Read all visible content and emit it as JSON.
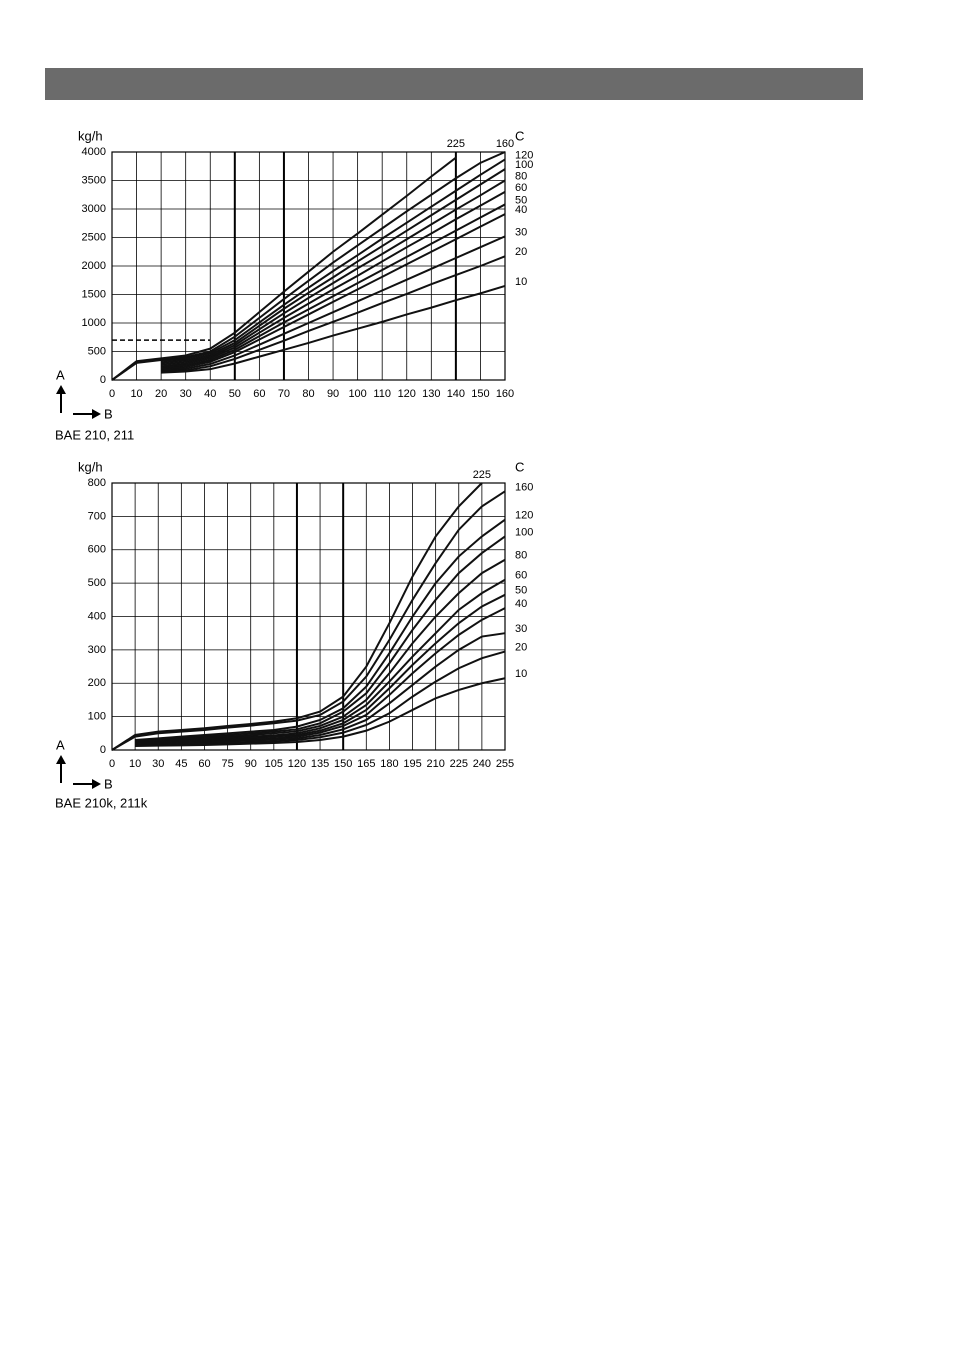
{
  "chart_data": [
    {
      "type": "line",
      "y_unit": "kg/h",
      "y_label": "A",
      "x_label": "B",
      "legend_title": "C",
      "caption": "BAE 210, 211",
      "color": "#111",
      "grid": true,
      "bold_gridlines_x": [
        50,
        70,
        140
      ],
      "reference": {
        "y": 700,
        "x_to": 40
      },
      "xlim": [
        0,
        160
      ],
      "ylim": [
        0,
        4000
      ],
      "xticks": [
        0,
        10,
        20,
        30,
        40,
        50,
        60,
        70,
        80,
        90,
        100,
        110,
        120,
        130,
        140,
        150,
        160
      ],
      "yticks": [
        0,
        500,
        1000,
        1500,
        2000,
        2500,
        3000,
        3500,
        4000
      ],
      "x": [
        0,
        10,
        20,
        30,
        40,
        50,
        60,
        70,
        80,
        90,
        100,
        110,
        120,
        130,
        140,
        150,
        160
      ],
      "series": [
        {
          "name": "225",
          "values": [
            0,
            330,
            380,
            430,
            550,
            830,
            1190,
            1550,
            1900,
            2250,
            2570,
            2900,
            3230,
            3570,
            3900,
            null,
            null
          ]
        },
        {
          "name": "160",
          "values": [
            0,
            300,
            350,
            400,
            500,
            760,
            1090,
            1420,
            1740,
            2060,
            2360,
            2660,
            2960,
            3250,
            3540,
            3810,
            4000
          ]
        },
        {
          "name": "120",
          "values": [
            null,
            null,
            330,
            380,
            470,
            700,
            1010,
            1320,
            1620,
            1910,
            2190,
            2480,
            2760,
            3040,
            3320,
            3600,
            3870
          ]
        },
        {
          "name": "100",
          "values": [
            null,
            null,
            300,
            350,
            440,
            650,
            950,
            1250,
            1530,
            1800,
            2080,
            2350,
            2620,
            2890,
            3160,
            3430,
            3700
          ]
        },
        {
          "name": "80",
          "values": [
            null,
            null,
            270,
            320,
            410,
            610,
            890,
            1170,
            1440,
            1700,
            1960,
            2210,
            2470,
            2730,
            2990,
            3240,
            3500
          ]
        },
        {
          "name": "60",
          "values": [
            null,
            null,
            240,
            290,
            380,
            570,
            830,
            1090,
            1340,
            1590,
            1830,
            2080,
            2330,
            2570,
            2820,
            3060,
            3300
          ]
        },
        {
          "name": "50",
          "values": [
            null,
            null,
            210,
            260,
            350,
            530,
            770,
            1010,
            1240,
            1470,
            1700,
            1930,
            2160,
            2390,
            2620,
            2850,
            3080
          ]
        },
        {
          "name": "40",
          "values": [
            null,
            null,
            190,
            230,
            320,
            490,
            710,
            930,
            1150,
            1370,
            1590,
            1810,
            2030,
            2250,
            2470,
            2690,
            2910
          ]
        },
        {
          "name": "30",
          "values": [
            null,
            null,
            170,
            200,
            280,
            430,
            620,
            810,
            1000,
            1190,
            1380,
            1570,
            1760,
            1950,
            2140,
            2330,
            2520
          ]
        },
        {
          "name": "20",
          "values": [
            null,
            null,
            150,
            170,
            240,
            370,
            530,
            690,
            860,
            1020,
            1180,
            1350,
            1510,
            1680,
            1840,
            2000,
            2170
          ]
        },
        {
          "name": "10",
          "values": [
            null,
            null,
            130,
            150,
            190,
            290,
            410,
            530,
            650,
            780,
            900,
            1020,
            1150,
            1270,
            1400,
            1520,
            1650
          ]
        }
      ]
    },
    {
      "type": "line",
      "y_unit": "kg/h",
      "y_label": "A",
      "x_label": "B",
      "legend_title": "C",
      "caption": "BAE 210k, 211k",
      "color": "#111",
      "grid": true,
      "bold_gridlines_x": [
        120,
        150
      ],
      "xlim": [
        0,
        255
      ],
      "ylim": [
        0,
        800
      ],
      "xticks": [
        0,
        10,
        30,
        45,
        60,
        75,
        90,
        105,
        120,
        135,
        150,
        165,
        180,
        195,
        210,
        225,
        240,
        255
      ],
      "yticks": [
        0,
        100,
        200,
        300,
        400,
        500,
        600,
        700,
        800
      ],
      "x": [
        0,
        10,
        30,
        45,
        60,
        75,
        90,
        105,
        120,
        135,
        150,
        165,
        180,
        195,
        210,
        225,
        240,
        255
      ],
      "series": [
        {
          "name": "225",
          "values": [
            0,
            45,
            55,
            60,
            65,
            72,
            78,
            85,
            95,
            115,
            160,
            250,
            380,
            520,
            640,
            730,
            800,
            null
          ]
        },
        {
          "name": "160",
          "values": [
            0,
            40,
            50,
            55,
            60,
            67,
            73,
            80,
            88,
            105,
            145,
            220,
            330,
            450,
            560,
            660,
            730,
            775
          ]
        },
        {
          "name": "120",
          "values": [
            null,
            30,
            35,
            40,
            45,
            50,
            55,
            60,
            70,
            90,
            125,
            190,
            290,
            400,
            500,
            580,
            640,
            690
          ]
        },
        {
          "name": "100",
          "values": [
            null,
            28,
            32,
            36,
            40,
            45,
            50,
            55,
            62,
            80,
            115,
            170,
            260,
            360,
            450,
            530,
            590,
            640
          ]
        },
        {
          "name": "80",
          "values": [
            null,
            25,
            28,
            32,
            36,
            40,
            45,
            50,
            56,
            72,
            100,
            150,
            230,
            320,
            400,
            470,
            530,
            570
          ]
        },
        {
          "name": "60",
          "values": [
            null,
            22,
            25,
            28,
            32,
            36,
            40,
            44,
            50,
            65,
            90,
            135,
            205,
            280,
            350,
            420,
            470,
            510
          ]
        },
        {
          "name": "50",
          "values": [
            null,
            20,
            23,
            26,
            29,
            32,
            36,
            40,
            45,
            58,
            80,
            120,
            185,
            255,
            320,
            380,
            430,
            465
          ]
        },
        {
          "name": "40",
          "values": [
            null,
            18,
            20,
            23,
            26,
            29,
            32,
            35,
            40,
            52,
            72,
            105,
            165,
            230,
            290,
            345,
            390,
            425
          ]
        },
        {
          "name": "30",
          "values": [
            null,
            16,
            18,
            20,
            23,
            26,
            28,
            31,
            35,
            45,
            62,
            90,
            140,
            195,
            250,
            300,
            340,
            350
          ]
        },
        {
          "name": "20",
          "values": [
            null,
            14,
            15,
            17,
            19,
            21,
            23,
            26,
            30,
            38,
            52,
            75,
            110,
            160,
            205,
            245,
            275,
            295
          ]
        },
        {
          "name": "10",
          "values": [
            null,
            12,
            13,
            14,
            15,
            17,
            19,
            21,
            24,
            30,
            40,
            58,
            85,
            120,
            155,
            180,
            200,
            215
          ]
        }
      ]
    }
  ]
}
